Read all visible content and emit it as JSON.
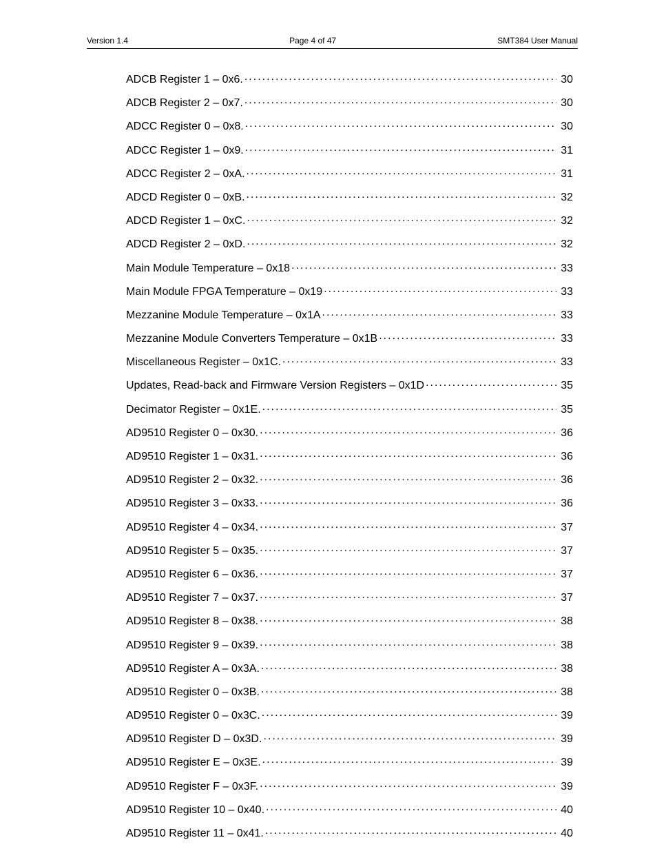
{
  "header": {
    "left": "Version 1.4",
    "center": "Page 4 of 47",
    "right": "SMT384 User Manual"
  },
  "toc": {
    "entries": [
      {
        "title": "ADCB Register 1 – 0x6.",
        "page": "30"
      },
      {
        "title": "ADCB Register 2 – 0x7.",
        "page": "30"
      },
      {
        "title": "ADCC Register 0 – 0x8.",
        "page": "30"
      },
      {
        "title": "ADCC Register 1 – 0x9.",
        "page": "31"
      },
      {
        "title": "ADCC Register 2 – 0xA.",
        "page": "31"
      },
      {
        "title": "ADCD Register 0 – 0xB.",
        "page": "32"
      },
      {
        "title": "ADCD Register 1 – 0xC.",
        "page": "32"
      },
      {
        "title": "ADCD Register 2 – 0xD.",
        "page": "32"
      },
      {
        "title": "Main Module Temperature – 0x18",
        "page": "33"
      },
      {
        "title": "Main Module FPGA Temperature – 0x19",
        "page": "33"
      },
      {
        "title": "Mezzanine Module Temperature – 0x1A",
        "page": "33"
      },
      {
        "title": "Mezzanine Module Converters Temperature – 0x1B",
        "page": "33"
      },
      {
        "title": "Miscellaneous Register – 0x1C.",
        "page": "33"
      },
      {
        "title": "Updates, Read-back and Firmware Version Registers – 0x1D",
        "page": "35"
      },
      {
        "title": "Decimator Register – 0x1E.",
        "page": "35"
      },
      {
        "title": "AD9510 Register 0 – 0x30.",
        "page": "36"
      },
      {
        "title": "AD9510 Register 1 – 0x31.",
        "page": "36"
      },
      {
        "title": "AD9510 Register 2 – 0x32.",
        "page": "36"
      },
      {
        "title": "AD9510 Register 3 – 0x33.",
        "page": "36"
      },
      {
        "title": "AD9510 Register 4 – 0x34.",
        "page": "37"
      },
      {
        "title": "AD9510 Register 5 – 0x35.",
        "page": "37"
      },
      {
        "title": "AD9510 Register 6 – 0x36.",
        "page": "37"
      },
      {
        "title": "AD9510 Register 7 – 0x37.",
        "page": "37"
      },
      {
        "title": "AD9510 Register 8 – 0x38.",
        "page": "38"
      },
      {
        "title": "AD9510 Register 9 – 0x39.",
        "page": "38"
      },
      {
        "title": "AD9510 Register A – 0x3A.",
        "page": "38"
      },
      {
        "title": "AD9510 Register 0 – 0x3B.",
        "page": "38"
      },
      {
        "title": "AD9510 Register 0 – 0x3C.",
        "page": "39"
      },
      {
        "title": "AD9510 Register D – 0x3D.",
        "page": "39"
      },
      {
        "title": "AD9510 Register E – 0x3E.",
        "page": "39"
      },
      {
        "title": "AD9510 Register F – 0x3F.",
        "page": "39"
      },
      {
        "title": "AD9510 Register 10 – 0x40.",
        "page": "40"
      },
      {
        "title": "AD9510 Register 11 – 0x41.",
        "page": "40"
      }
    ]
  }
}
